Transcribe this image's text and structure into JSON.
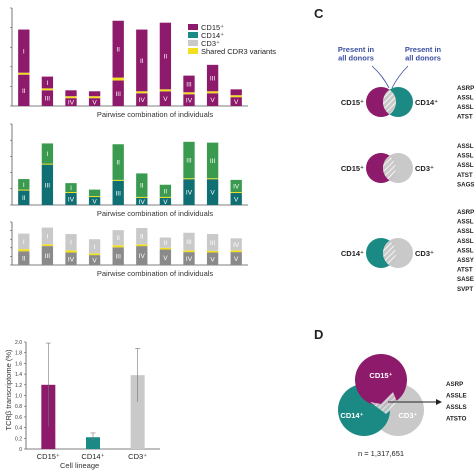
{
  "colors": {
    "cd15": "#8e1a6c",
    "cd14": "#1b8a84",
    "cd3": "#c9c9c9",
    "shared": "#f2e020",
    "cd14_dark": "#0f6f72",
    "cd3_dark": "#8a8a8a",
    "green": "#3a9a4f",
    "annot_blue": "#3b4fa0"
  },
  "legend": {
    "items": [
      "CD15⁺",
      "CD14⁺",
      "CD3⁺",
      "Shared CDR3 variants"
    ]
  },
  "chart_data": [
    {
      "type": "bar",
      "panel": "CD15+",
      "xlabel": "Pairwise combination of individuals",
      "ylim": [
        0,
        10
      ],
      "categories": [
        "1",
        "2",
        "3",
        "4",
        "5",
        "6",
        "7",
        "8",
        "9",
        "10"
      ],
      "bottom_labels": [
        "II",
        "III",
        "IV",
        "V",
        "III",
        "IV",
        "V",
        "IV",
        "V",
        "V"
      ],
      "top_labels": [
        "I",
        "I",
        "I",
        "I",
        "II",
        "II",
        "II",
        "III",
        "III",
        "IV"
      ],
      "series": [
        {
          "name": "bottom",
          "values": [
            3.2,
            1.6,
            0.8,
            0.8,
            2.6,
            1.3,
            1.5,
            1.2,
            1.3,
            0.9
          ]
        },
        {
          "name": "shared",
          "values": [
            0.2,
            0.2,
            0.2,
            0.2,
            0.3,
            0.2,
            0.2,
            0.2,
            0.2,
            0.2
          ]
        },
        {
          "name": "top",
          "values": [
            4.4,
            1.2,
            0.6,
            0.5,
            5.8,
            6.3,
            6.8,
            1.7,
            2.7,
            0.6
          ]
        }
      ]
    },
    {
      "type": "bar",
      "panel": "CD14+",
      "xlabel": "Pairwise combination of individuals",
      "ylim": [
        0,
        10
      ],
      "categories": [
        "1",
        "2",
        "3",
        "4",
        "5",
        "6",
        "7",
        "8",
        "9",
        "10"
      ],
      "bottom_labels": [
        "II",
        "III",
        "IV",
        "V",
        "III",
        "IV",
        "V",
        "IV",
        "V",
        "V"
      ],
      "top_labels": [
        "I",
        "I",
        "I",
        "I",
        "II",
        "II",
        "II",
        "III",
        "III",
        "IV"
      ],
      "series": [
        {
          "name": "bottom",
          "values": [
            1.8,
            5.0,
            1.5,
            1.0,
            3.0,
            0.9,
            0.9,
            3.2,
            3.2,
            1.5
          ]
        },
        {
          "name": "shared",
          "values": [
            0.1,
            0.1,
            0.1,
            0.1,
            0.1,
            0.1,
            0.1,
            0.1,
            0.1,
            0.1
          ]
        },
        {
          "name": "top",
          "values": [
            1.3,
            2.5,
            1.1,
            0.8,
            4.4,
            2.9,
            1.5,
            4.5,
            4.4,
            1.5
          ]
        }
      ]
    },
    {
      "type": "bar",
      "panel": "CD3+",
      "xlabel": "Pairwise combination of individuals",
      "ylim": [
        0,
        10
      ],
      "categories": [
        "1",
        "2",
        "3",
        "4",
        "5",
        "6",
        "7",
        "8",
        "9",
        "10"
      ],
      "bottom_labels": [
        "II",
        "III",
        "IV",
        "V",
        "III",
        "IV",
        "V",
        "IV",
        "V",
        "V"
      ],
      "top_labels": [
        "I",
        "I",
        "I",
        "I",
        "II",
        "II",
        "II",
        "III",
        "III",
        "IV"
      ],
      "series": [
        {
          "name": "bottom",
          "values": [
            3.2,
            4.4,
            2.9,
            2.3,
            4.1,
            4.4,
            3.6,
            3.0,
            2.9,
            3.0
          ]
        },
        {
          "name": "shared",
          "values": [
            0.5,
            0.4,
            0.5,
            0.4,
            0.5,
            0.4,
            0.4,
            0.4,
            0.4,
            0.4
          ]
        },
        {
          "name": "top",
          "values": [
            3.6,
            3.9,
            3.8,
            3.3,
            3.5,
            3.8,
            2.4,
            4.1,
            3.9,
            2.8
          ]
        }
      ]
    },
    {
      "type": "bar",
      "panel": "summary",
      "xlabel": "Cell lineage",
      "ylabel": "TCRβ transcriptome (%)",
      "ylim": [
        0,
        2
      ],
      "yticks": [
        "0",
        "0.2",
        "0.4",
        "0.6",
        "0.8",
        "1.0",
        "1.2",
        "1.4",
        "1.6",
        "1.8",
        "2.0"
      ],
      "categories": [
        "CD15⁺",
        "CD14⁺",
        "CD3⁺"
      ],
      "values": [
        1.2,
        0.22,
        1.38
      ],
      "errors": [
        0.78,
        0.08,
        0.5
      ]
    }
  ],
  "panel_c": {
    "label": "C",
    "annot_left": "Present in all donors",
    "annot_right": "Present in all donors",
    "venns": [
      {
        "left": "CD15⁺",
        "right": "CD14⁺",
        "seqs": [
          "ASRP",
          "ASSL",
          "ASSL",
          "ATST"
        ]
      },
      {
        "left": "CD15⁺",
        "right": "CD3⁺",
        "seqs": [
          "ASSL",
          "ASSL",
          "ASSL",
          "ATST",
          "SAGS"
        ]
      },
      {
        "left": "CD14⁺",
        "right": "CD3⁺",
        "seqs": [
          "ASRP",
          "ASSL",
          "ASSL",
          "ASSL",
          "ASSL",
          "ASSY",
          "ATST",
          "SASE",
          "SVPT"
        ]
      }
    ]
  },
  "panel_d": {
    "label": "D",
    "circles": [
      "CD15⁺",
      "CD14⁺",
      "CD3⁺"
    ],
    "seqs": [
      "ASRP",
      "ASSLE",
      "ASSLS",
      "ATSTO"
    ],
    "n_label": "n = 1,317,651"
  }
}
